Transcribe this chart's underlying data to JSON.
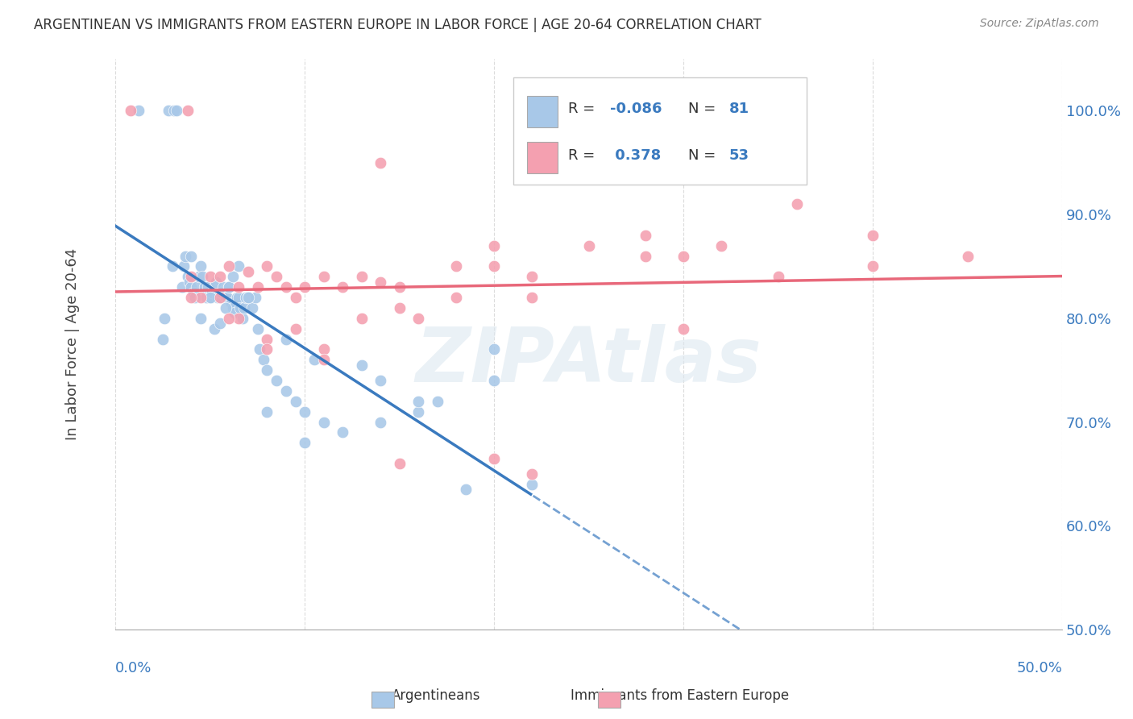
{
  "title": "ARGENTINEAN VS IMMIGRANTS FROM EASTERN EUROPE IN LABOR FORCE | AGE 20-64 CORRELATION CHART",
  "source": "Source: ZipAtlas.com",
  "ylabel": "In Labor Force | Age 20-64",
  "yaxis_ticks": [
    50.0,
    60.0,
    70.0,
    80.0,
    90.0,
    100.0
  ],
  "xlim": [
    0.0,
    50.0
  ],
  "ylim": [
    50.0,
    105.0
  ],
  "blue_color": "#a8c8e8",
  "pink_color": "#f4a0b0",
  "blue_line_color": "#3a7abf",
  "pink_line_color": "#e8687a",
  "background_color": "#ffffff",
  "grid_color": "#cccccc",
  "title_color": "#333333",
  "axis_label_color": "#3a7abf",
  "watermark_color": "#dde8f0",
  "blue_scatter_x": [
    1.2,
    2.8,
    3.1,
    3.2,
    3.5,
    3.6,
    3.7,
    3.8,
    3.9,
    4.0,
    4.1,
    4.2,
    4.3,
    4.4,
    4.5,
    4.6,
    4.7,
    4.8,
    4.9,
    5.0,
    5.1,
    5.2,
    5.3,
    5.4,
    5.5,
    5.6,
    5.7,
    5.8,
    5.9,
    6.0,
    6.1,
    6.2,
    6.3,
    6.4,
    6.5,
    6.6,
    6.7,
    6.8,
    6.9,
    7.0,
    7.2,
    7.4,
    7.6,
    7.8,
    8.0,
    8.5,
    9.0,
    9.5,
    10.0,
    10.5,
    11.0,
    13.0,
    14.0,
    16.0,
    17.0,
    18.5,
    20.0,
    22.0,
    2.5,
    2.6,
    3.0,
    4.0,
    4.5,
    5.0,
    5.2,
    5.5,
    5.8,
    6.0,
    6.2,
    6.5,
    7.0,
    7.5,
    8.0,
    9.0,
    10.0,
    12.0,
    14.0,
    16.0,
    20.0
  ],
  "blue_scatter_y": [
    100.0,
    100.0,
    100.0,
    100.0,
    83.0,
    85.0,
    86.0,
    84.0,
    83.5,
    83.0,
    82.5,
    82.0,
    83.0,
    84.0,
    85.0,
    84.0,
    83.0,
    82.0,
    83.0,
    82.0,
    82.5,
    83.0,
    83.5,
    82.0,
    82.0,
    82.5,
    83.0,
    82.0,
    82.0,
    83.0,
    81.5,
    81.0,
    80.5,
    82.0,
    82.0,
    81.0,
    80.0,
    81.0,
    82.0,
    82.0,
    81.0,
    82.0,
    77.0,
    76.0,
    75.0,
    74.0,
    78.0,
    72.0,
    71.0,
    76.0,
    70.0,
    75.5,
    74.0,
    71.0,
    72.0,
    63.5,
    77.0,
    64.0,
    78.0,
    80.0,
    85.0,
    86.0,
    80.0,
    82.0,
    79.0,
    79.5,
    81.0,
    83.0,
    84.0,
    85.0,
    82.0,
    79.0,
    71.0,
    73.0,
    68.0,
    69.0,
    70.0,
    72.0,
    74.0
  ],
  "pink_scatter_x": [
    0.8,
    3.8,
    4.0,
    4.5,
    5.0,
    5.5,
    6.0,
    6.5,
    7.0,
    7.5,
    8.0,
    8.5,
    9.0,
    9.5,
    10.0,
    11.0,
    12.0,
    13.0,
    14.0,
    15.0,
    16.0,
    18.0,
    20.0,
    22.0,
    25.0,
    30.0,
    35.0,
    40.0,
    45.0,
    5.5,
    6.5,
    8.0,
    9.5,
    11.0,
    13.0,
    15.0,
    18.0,
    22.0,
    28.0,
    32.0,
    4.0,
    6.0,
    8.0,
    11.0,
    14.0,
    20.0,
    28.0,
    36.0,
    15.0,
    20.0,
    30.0,
    40.0,
    22.0
  ],
  "pink_scatter_y": [
    100.0,
    100.0,
    84.0,
    82.0,
    84.0,
    84.0,
    85.0,
    83.0,
    84.5,
    83.0,
    85.0,
    84.0,
    83.0,
    82.0,
    83.0,
    84.0,
    83.0,
    84.0,
    83.5,
    83.0,
    80.0,
    85.0,
    85.0,
    82.0,
    87.0,
    86.0,
    84.0,
    85.0,
    86.0,
    82.0,
    80.0,
    78.0,
    79.0,
    77.0,
    80.0,
    81.0,
    82.0,
    84.0,
    86.0,
    87.0,
    82.0,
    80.0,
    77.0,
    76.0,
    95.0,
    87.0,
    88.0,
    91.0,
    66.0,
    66.5,
    79.0,
    88.0,
    65.0
  ]
}
